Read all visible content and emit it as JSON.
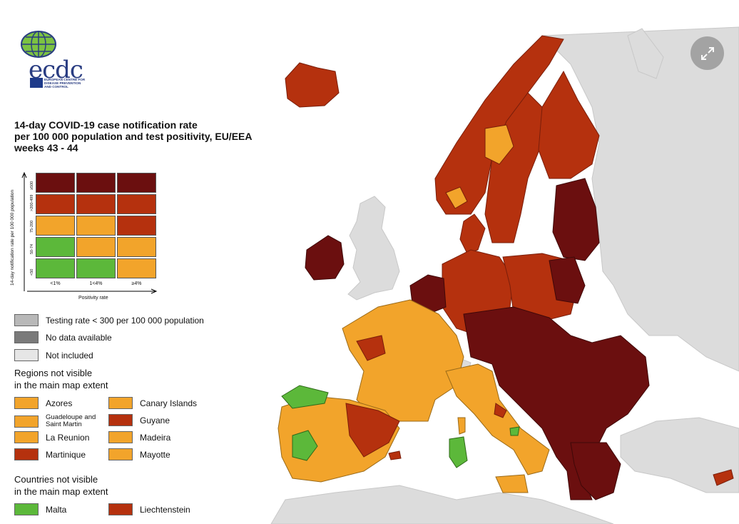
{
  "title": {
    "line1": "14-day COVID-19 case notification rate",
    "line2": "per 100 000 population and test positivity, EU/EEA",
    "line3": "weeks 43 - 44"
  },
  "logo": {
    "text": "ecdc",
    "subtext": "EUROPEAN CENTRE FOR DISEASE PREVENTION AND CONTROL"
  },
  "matrix": {
    "y_axis_label": "14-day notification rate per 100 000 population",
    "y_ticks": [
      "≥500",
      ">200-499",
      "75-200",
      "50-74",
      "<50"
    ],
    "x_ticks": [
      "<1%",
      "1<4%",
      "≥4%"
    ],
    "x_axis_label": "Positivity rate",
    "grid": [
      [
        "#6b0f0f",
        "#6b0f0f",
        "#6b0f0f"
      ],
      [
        "#b5310e",
        "#b5310e",
        "#b5310e"
      ],
      [
        "#f2a42b",
        "#f2a42b",
        "#b5310e"
      ],
      [
        "#5cb83a",
        "#f2a42b",
        "#f2a42b"
      ],
      [
        "#5cb83a",
        "#5cb83a",
        "#f2a42b"
      ]
    ]
  },
  "legend": {
    "testing": {
      "label": "Testing rate < 300 per 100 000 population",
      "color": "#b8b8b8"
    },
    "no_data": {
      "label": "No data available",
      "color": "#7a7a7a"
    },
    "not_included": {
      "label": "Not included",
      "color": "#e6e6e6"
    },
    "regions_heading1": "Regions not visible",
    "regions_heading2": "in the main map extent",
    "regions": [
      {
        "label": "Azores",
        "color": "#f2a42b"
      },
      {
        "label": "Canary Islands",
        "color": "#f2a42b"
      },
      {
        "label": "Guadeloupe and Saint Martin",
        "color": "#f2a42b"
      },
      {
        "label": "Guyane",
        "color": "#b5310e"
      },
      {
        "label": "La Reunion",
        "color": "#f2a42b"
      },
      {
        "label": "Madeira",
        "color": "#f2a42b"
      },
      {
        "label": "Martinique",
        "color": "#b5310e"
      },
      {
        "label": "Mayotte",
        "color": "#f2a42b"
      }
    ],
    "countries_heading1": "Countries not visible",
    "countries_heading2": "in the main map extent",
    "countries": [
      {
        "label": "Malta",
        "color": "#5cb83a"
      },
      {
        "label": "Liechtenstein",
        "color": "#b5310e"
      }
    ]
  },
  "colors": {
    "dark_red": "#6b0f0f",
    "red": "#b5310e",
    "orange": "#f2a42b",
    "green": "#5cb83a",
    "not_included": "#dcdcdc",
    "sea": "#ffffff"
  },
  "controls": {
    "expand_icon": "expand-icon"
  }
}
